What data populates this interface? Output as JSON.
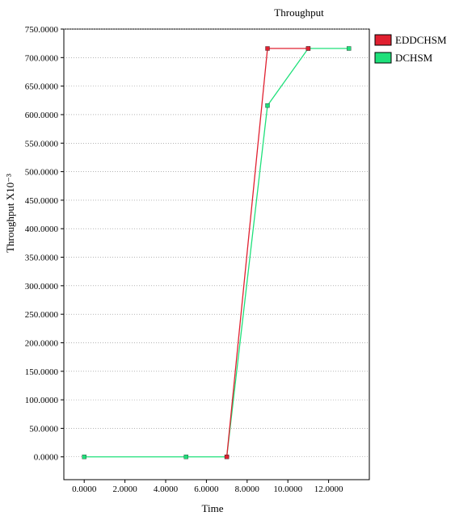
{
  "chart_data": {
    "type": "line",
    "title": "Throughput",
    "xlabel": "Time",
    "ylabel": "Throughput X10⁻³",
    "xlim": [
      -1,
      14
    ],
    "ylim": [
      -40,
      750
    ],
    "x_ticks": [
      0,
      2,
      4,
      6,
      8,
      10,
      12
    ],
    "x_tick_labels": [
      "0.0000",
      "2.0000",
      "4.0000",
      "6.0000",
      "8.0000",
      "10.0000",
      "12.0000"
    ],
    "y_ticks": [
      0,
      50,
      100,
      150,
      200,
      250,
      300,
      350,
      400,
      450,
      500,
      550,
      600,
      650,
      700,
      750
    ],
    "y_tick_labels": [
      "0.0000",
      "50.0000",
      "100.0000",
      "150.0000",
      "200.0000",
      "250.0000",
      "300.0000",
      "350.0000",
      "400.0000",
      "450.0000",
      "500.0000",
      "550.0000",
      "600.0000",
      "650.0000",
      "700.0000",
      "750.0000"
    ],
    "grid": false,
    "legend_position": "right",
    "series": [
      {
        "name": "EDDCHSM",
        "color": "#e02030",
        "points": [
          [
            7,
            0
          ],
          [
            9,
            716
          ],
          [
            11,
            716
          ]
        ]
      },
      {
        "name": "DCHSM",
        "color": "#1ee07a",
        "points": [
          [
            0,
            0
          ],
          [
            5,
            0
          ],
          [
            7,
            0
          ],
          [
            9,
            616
          ],
          [
            11,
            716
          ],
          [
            13,
            716
          ]
        ]
      }
    ]
  }
}
